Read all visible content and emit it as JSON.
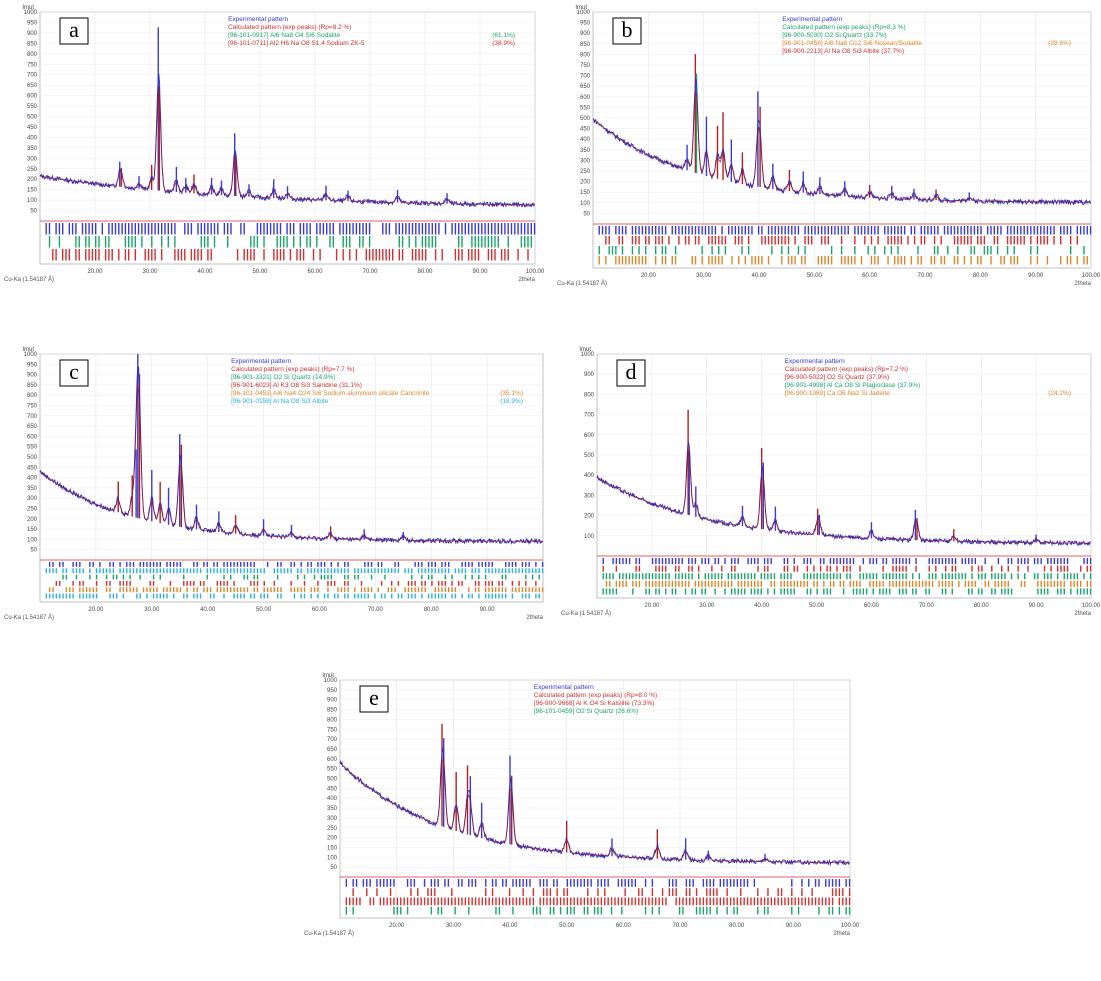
{
  "chart_data": [
    {
      "type": "line",
      "panel_label": "a",
      "y_unit": "Imut",
      "y_ticks": [
        "1000",
        "950",
        "900",
        "850",
        "800",
        "750",
        "700",
        "650",
        "600",
        "550",
        "500",
        "450",
        "400",
        "350",
        "300",
        "250",
        "200",
        "150",
        "100",
        "50"
      ],
      "x_ticks": [
        "20.00",
        "30.00",
        "40.00",
        "50.00",
        "60.00",
        "70.00",
        "80.00",
        "90.00",
        "100.00"
      ],
      "x_axis_label": "2theta",
      "wavelength_label": "Cu-Ka (1.54187 Å)",
      "xlim": [
        10,
        100
      ],
      "ylim": [
        0,
        1000
      ],
      "legend": [
        {
          "text": "Experimental pattern",
          "color": "#3b3bd4",
          "amount": ""
        },
        {
          "text": "Calculated pattern (exp peaks) (Rp=8.2 %)",
          "color": "#d03030",
          "amount": ""
        },
        {
          "text": "[96-101-0917] Al6 Na8 O4 Si6  Sodalite",
          "color": "#1aa66a",
          "amount": "(61.1%)"
        },
        {
          "text": "[96-101-0711] Al2 H6 Na O8 S1.4  Sodium ZK-5",
          "color": "#d03030",
          "amount": "(38.9%)"
        }
      ],
      "background": {
        "start": 215,
        "end": 65,
        "decay": 35
      },
      "peaks": [
        [
          24.5,
          120,
          "b"
        ],
        [
          24.8,
          90,
          "r"
        ],
        [
          28.0,
          60,
          "b"
        ],
        [
          30.3,
          120,
          "r"
        ],
        [
          31.5,
          780,
          "b"
        ],
        [
          31.7,
          500,
          "r"
        ],
        [
          34.8,
          120,
          "b"
        ],
        [
          36.5,
          70,
          "b"
        ],
        [
          38.0,
          90,
          "r"
        ],
        [
          41.2,
          80,
          "b"
        ],
        [
          43.0,
          70,
          "b"
        ],
        [
          45.4,
          300,
          "b"
        ],
        [
          45.6,
          200,
          "r"
        ],
        [
          48.0,
          60,
          "b"
        ],
        [
          52.5,
          90,
          "b"
        ],
        [
          55.0,
          60,
          "b"
        ],
        [
          62.0,
          70,
          "b"
        ],
        [
          66.0,
          50,
          "b"
        ],
        [
          75.0,
          60,
          "b"
        ],
        [
          84.0,
          50,
          "b"
        ]
      ],
      "ref_rows": [
        {
          "color": "#3b3bd4",
          "density": 0.85
        },
        {
          "color": "#1aa66a",
          "density": 0.45
        },
        {
          "color": "#d03030",
          "density": 0.55
        }
      ]
    },
    {
      "type": "line",
      "panel_label": "b",
      "y_unit": "Imut",
      "y_ticks": [
        "1000",
        "950",
        "900",
        "850",
        "800",
        "750",
        "700",
        "650",
        "600",
        "550",
        "500",
        "450",
        "400",
        "350",
        "300",
        "250",
        "200",
        "150",
        "100",
        "50"
      ],
      "x_ticks": [
        "20.00",
        "30.00",
        "40.00",
        "50.00",
        "60.00",
        "70.00",
        "80.00",
        "90.00",
        "100.00"
      ],
      "x_axis_label": "2theta",
      "wavelength_label": "Cu-Ka (1.54187 Å)",
      "xlim": [
        10,
        100
      ],
      "ylim": [
        0,
        1000
      ],
      "legend": [
        {
          "text": "Experimental pattern",
          "color": "#3b3bd4",
          "amount": ""
        },
        {
          "text": "Calculated pattern (exp peaks) (Rp=8.3 %)",
          "color": "#1aa66a",
          "amount": ""
        },
        {
          "text": "[96-900-5030] O2 Si  Quartz (33.7%)",
          "color": "#1aa66a",
          "amount": ""
        },
        {
          "text": "[96-901-0456] Al6 Na8 O12 Si6  Nosean/Sodalite",
          "color": "#e0862a",
          "amount": "(28.6%)"
        },
        {
          "text": "[96-900-2213] Al Na O8 Si3  Albite (37.7%)",
          "color": "#d03030",
          "amount": ""
        }
      ],
      "background": {
        "start": 495,
        "end": 100,
        "decay": 18
      },
      "peaks": [
        [
          27.0,
          120,
          "b"
        ],
        [
          28.5,
          560,
          "r"
        ],
        [
          28.7,
          470,
          "g"
        ],
        [
          30.5,
          280,
          "b"
        ],
        [
          32.5,
          250,
          "r"
        ],
        [
          33.5,
          320,
          "r"
        ],
        [
          35.0,
          200,
          "b"
        ],
        [
          37.0,
          150,
          "r"
        ],
        [
          39.8,
          450,
          "b"
        ],
        [
          40.2,
          380,
          "r"
        ],
        [
          42.5,
          120,
          "b"
        ],
        [
          45.5,
          100,
          "r"
        ],
        [
          48.0,
          100,
          "b"
        ],
        [
          51.0,
          80,
          "b"
        ],
        [
          55.5,
          70,
          "b"
        ],
        [
          60.0,
          60,
          "r"
        ],
        [
          64.0,
          60,
          "b"
        ],
        [
          68.0,
          50,
          "b"
        ],
        [
          72.0,
          50,
          "r"
        ],
        [
          78.0,
          40,
          "b"
        ]
      ],
      "ref_rows": [
        {
          "color": "#3b3bd4",
          "density": 0.85
        },
        {
          "color": "#d03030",
          "density": 0.6
        },
        {
          "color": "#1aa66a",
          "density": 0.35
        },
        {
          "color": "#e0862a",
          "density": 0.55
        }
      ]
    },
    {
      "type": "line",
      "panel_label": "c",
      "y_unit": "Imut",
      "y_ticks": [
        "1000",
        "950",
        "900",
        "850",
        "800",
        "750",
        "700",
        "650",
        "600",
        "550",
        "500",
        "450",
        "400",
        "350",
        "300",
        "250",
        "200",
        "150",
        "100",
        "50"
      ],
      "x_ticks": [
        "20.00",
        "30.00",
        "40.00",
        "50.00",
        "60.00",
        "70.00",
        "80.00",
        "90.00"
      ],
      "x_axis_label": "2theta",
      "wavelength_label": "Cu-Ka (1.54187 Å)",
      "xlim": [
        10,
        100
      ],
      "ylim": [
        0,
        1000
      ],
      "legend": [
        {
          "text": "Experimental pattern",
          "color": "#3b3bd4",
          "amount": ""
        },
        {
          "text": "Calculated pattern (exp peaks) (Rp=7.7 %)",
          "color": "#d03030",
          "amount": ""
        },
        {
          "text": "[96-901-3321] O2 Si  Quartz (14.9%)",
          "color": "#1aa66a",
          "amount": ""
        },
        {
          "text": "[96-901-6023] Al K3 O8 Si3  Sanidine (31.1%)",
          "color": "#d03030",
          "amount": ""
        },
        {
          "text": "[96-101-0453] Al6 Na4 O24 Si6  Sodium aluminium silicate  Cancrinite",
          "color": "#e0862a",
          "amount": "(35.1%)"
        },
        {
          "text": "[96-901-0158] Al Na O8 Si3  Albite",
          "color": "#2bb0e0",
          "amount": "(18.9%)"
        }
      ],
      "background": {
        "start": 430,
        "end": 90,
        "decay": 16
      },
      "peaks": [
        [
          24.0,
          150,
          "r"
        ],
        [
          26.5,
          200,
          "r"
        ],
        [
          27.2,
          330,
          "b"
        ],
        [
          27.5,
          920,
          "b"
        ],
        [
          27.8,
          700,
          "r"
        ],
        [
          30.0,
          250,
          "b"
        ],
        [
          31.5,
          200,
          "r"
        ],
        [
          33.0,
          180,
          "b"
        ],
        [
          35.0,
          450,
          "b"
        ],
        [
          35.3,
          400,
          "r"
        ],
        [
          38.0,
          120,
          "b"
        ],
        [
          42.0,
          100,
          "b"
        ],
        [
          45.0,
          90,
          "r"
        ],
        [
          50.0,
          80,
          "b"
        ],
        [
          55.0,
          60,
          "b"
        ],
        [
          62.0,
          60,
          "r"
        ],
        [
          68.0,
          50,
          "b"
        ],
        [
          75.0,
          40,
          "b"
        ]
      ],
      "ref_rows": [
        {
          "color": "#3b3bd4",
          "density": 0.5
        },
        {
          "color": "#2bb0e0",
          "density": 0.9
        },
        {
          "color": "#1aa66a",
          "density": 0.3
        },
        {
          "color": "#d03030",
          "density": 0.45
        },
        {
          "color": "#e0862a",
          "density": 0.7
        },
        {
          "color": "#2bb0e0",
          "density": 0.6
        }
      ]
    },
    {
      "type": "line",
      "panel_label": "d",
      "y_unit": "Imut",
      "y_ticks": [
        "1000",
        "900",
        "800",
        "700",
        "600",
        "500",
        "400",
        "300",
        "200",
        "100"
      ],
      "x_ticks": [
        "20.00",
        "30.00",
        "40.00",
        "50.00",
        "60.00",
        "70.00",
        "80.00",
        "90.00",
        "100.00"
      ],
      "x_axis_label": "2theta",
      "wavelength_label": "Cu-Ka (1.54187 Å)",
      "xlim": [
        10,
        100
      ],
      "ylim": [
        0,
        1000
      ],
      "legend": [
        {
          "text": "Experimental pattern",
          "color": "#3b3bd4",
          "amount": ""
        },
        {
          "text": "Calculated pattern (exp peaks) (Rp=7.2 %)",
          "color": "#d03030",
          "amount": ""
        },
        {
          "text": "[96-900-5022] O2 Si  Quartz (37.9%)",
          "color": "#d03030",
          "amount": ""
        },
        {
          "text": "[96-901-4998] Al Ca O8 Si  Plagioclase (37.9%)",
          "color": "#1aa66a",
          "amount": ""
        },
        {
          "text": "[96-900-1089] Ca O6 Na2 Si  Jadeite",
          "color": "#e0862a",
          "amount": "(24.2%)"
        }
      ],
      "background": {
        "start": 390,
        "end": 60,
        "decay": 20
      },
      "peaks": [
        [
          26.6,
          520,
          "r"
        ],
        [
          26.8,
          320,
          "b"
        ],
        [
          28.0,
          150,
          "b"
        ],
        [
          36.5,
          100,
          "b"
        ],
        [
          40.0,
          400,
          "r"
        ],
        [
          40.3,
          330,
          "b"
        ],
        [
          42.5,
          120,
          "b"
        ],
        [
          50.2,
          130,
          "r"
        ],
        [
          50.5,
          100,
          "b"
        ],
        [
          60.0,
          80,
          "b"
        ],
        [
          68.0,
          150,
          "b"
        ],
        [
          68.3,
          110,
          "r"
        ],
        [
          75.0,
          60,
          "r"
        ],
        [
          90.0,
          40,
          "b"
        ]
      ],
      "ref_rows": [
        {
          "color": "#3b3bd4",
          "density": 0.7
        },
        {
          "color": "#d03030",
          "density": 0.4
        },
        {
          "color": "#1aa66a",
          "density": 0.8
        },
        {
          "color": "#e0862a",
          "density": 0.75
        },
        {
          "color": "#1aa66a",
          "density": 0.55
        }
      ]
    },
    {
      "type": "line",
      "panel_label": "e",
      "y_unit": "Imut",
      "y_ticks": [
        "1000",
        "950",
        "900",
        "850",
        "800",
        "750",
        "700",
        "650",
        "600",
        "550",
        "500",
        "450",
        "400",
        "350",
        "300",
        "250",
        "200",
        "150",
        "100",
        "50"
      ],
      "x_ticks": [
        "20.00",
        "30.00",
        "40.00",
        "50.00",
        "60.00",
        "70.00",
        "80.00",
        "90.00",
        "100.00"
      ],
      "x_axis_label": "2theta",
      "wavelength_label": "Cu-Ka (1.54187 Å)",
      "xlim": [
        10,
        100
      ],
      "ylim": [
        0,
        1000
      ],
      "legend": [
        {
          "text": "Experimental pattern",
          "color": "#3b3bd4",
          "amount": ""
        },
        {
          "text": "Calculated pattern (exp peaks) (Rp=8.0 %)",
          "color": "#d03030",
          "amount": ""
        },
        {
          "text": "[96-900-9668] Al K O4 Si  Kalsilite (73.3%)",
          "color": "#d03030",
          "amount": ""
        },
        {
          "text": "[96-101-0459] O2 Si  Quartz (26.6%)",
          "color": "#1aa66a",
          "amount": ""
        }
      ],
      "background": {
        "start": 580,
        "end": 70,
        "decay": 18
      },
      "peaks": [
        [
          28.0,
          520,
          "r"
        ],
        [
          28.3,
          450,
          "b"
        ],
        [
          30.5,
          300,
          "r"
        ],
        [
          32.5,
          350,
          "r"
        ],
        [
          33.0,
          300,
          "b"
        ],
        [
          35.0,
          180,
          "b"
        ],
        [
          40.0,
          450,
          "b"
        ],
        [
          40.3,
          350,
          "r"
        ],
        [
          50.0,
          160,
          "r"
        ],
        [
          58.0,
          90,
          "b"
        ],
        [
          66.0,
          150,
          "r"
        ],
        [
          71.0,
          110,
          "b"
        ],
        [
          75.0,
          50,
          "b"
        ],
        [
          85.0,
          40,
          "b"
        ]
      ],
      "ref_rows": [
        {
          "color": "#3b3bd4",
          "density": 0.65
        },
        {
          "color": "#d03030",
          "density": 0.35
        },
        {
          "color": "#d03030",
          "density": 0.95
        },
        {
          "color": "#1aa66a",
          "density": 0.35
        }
      ]
    }
  ]
}
